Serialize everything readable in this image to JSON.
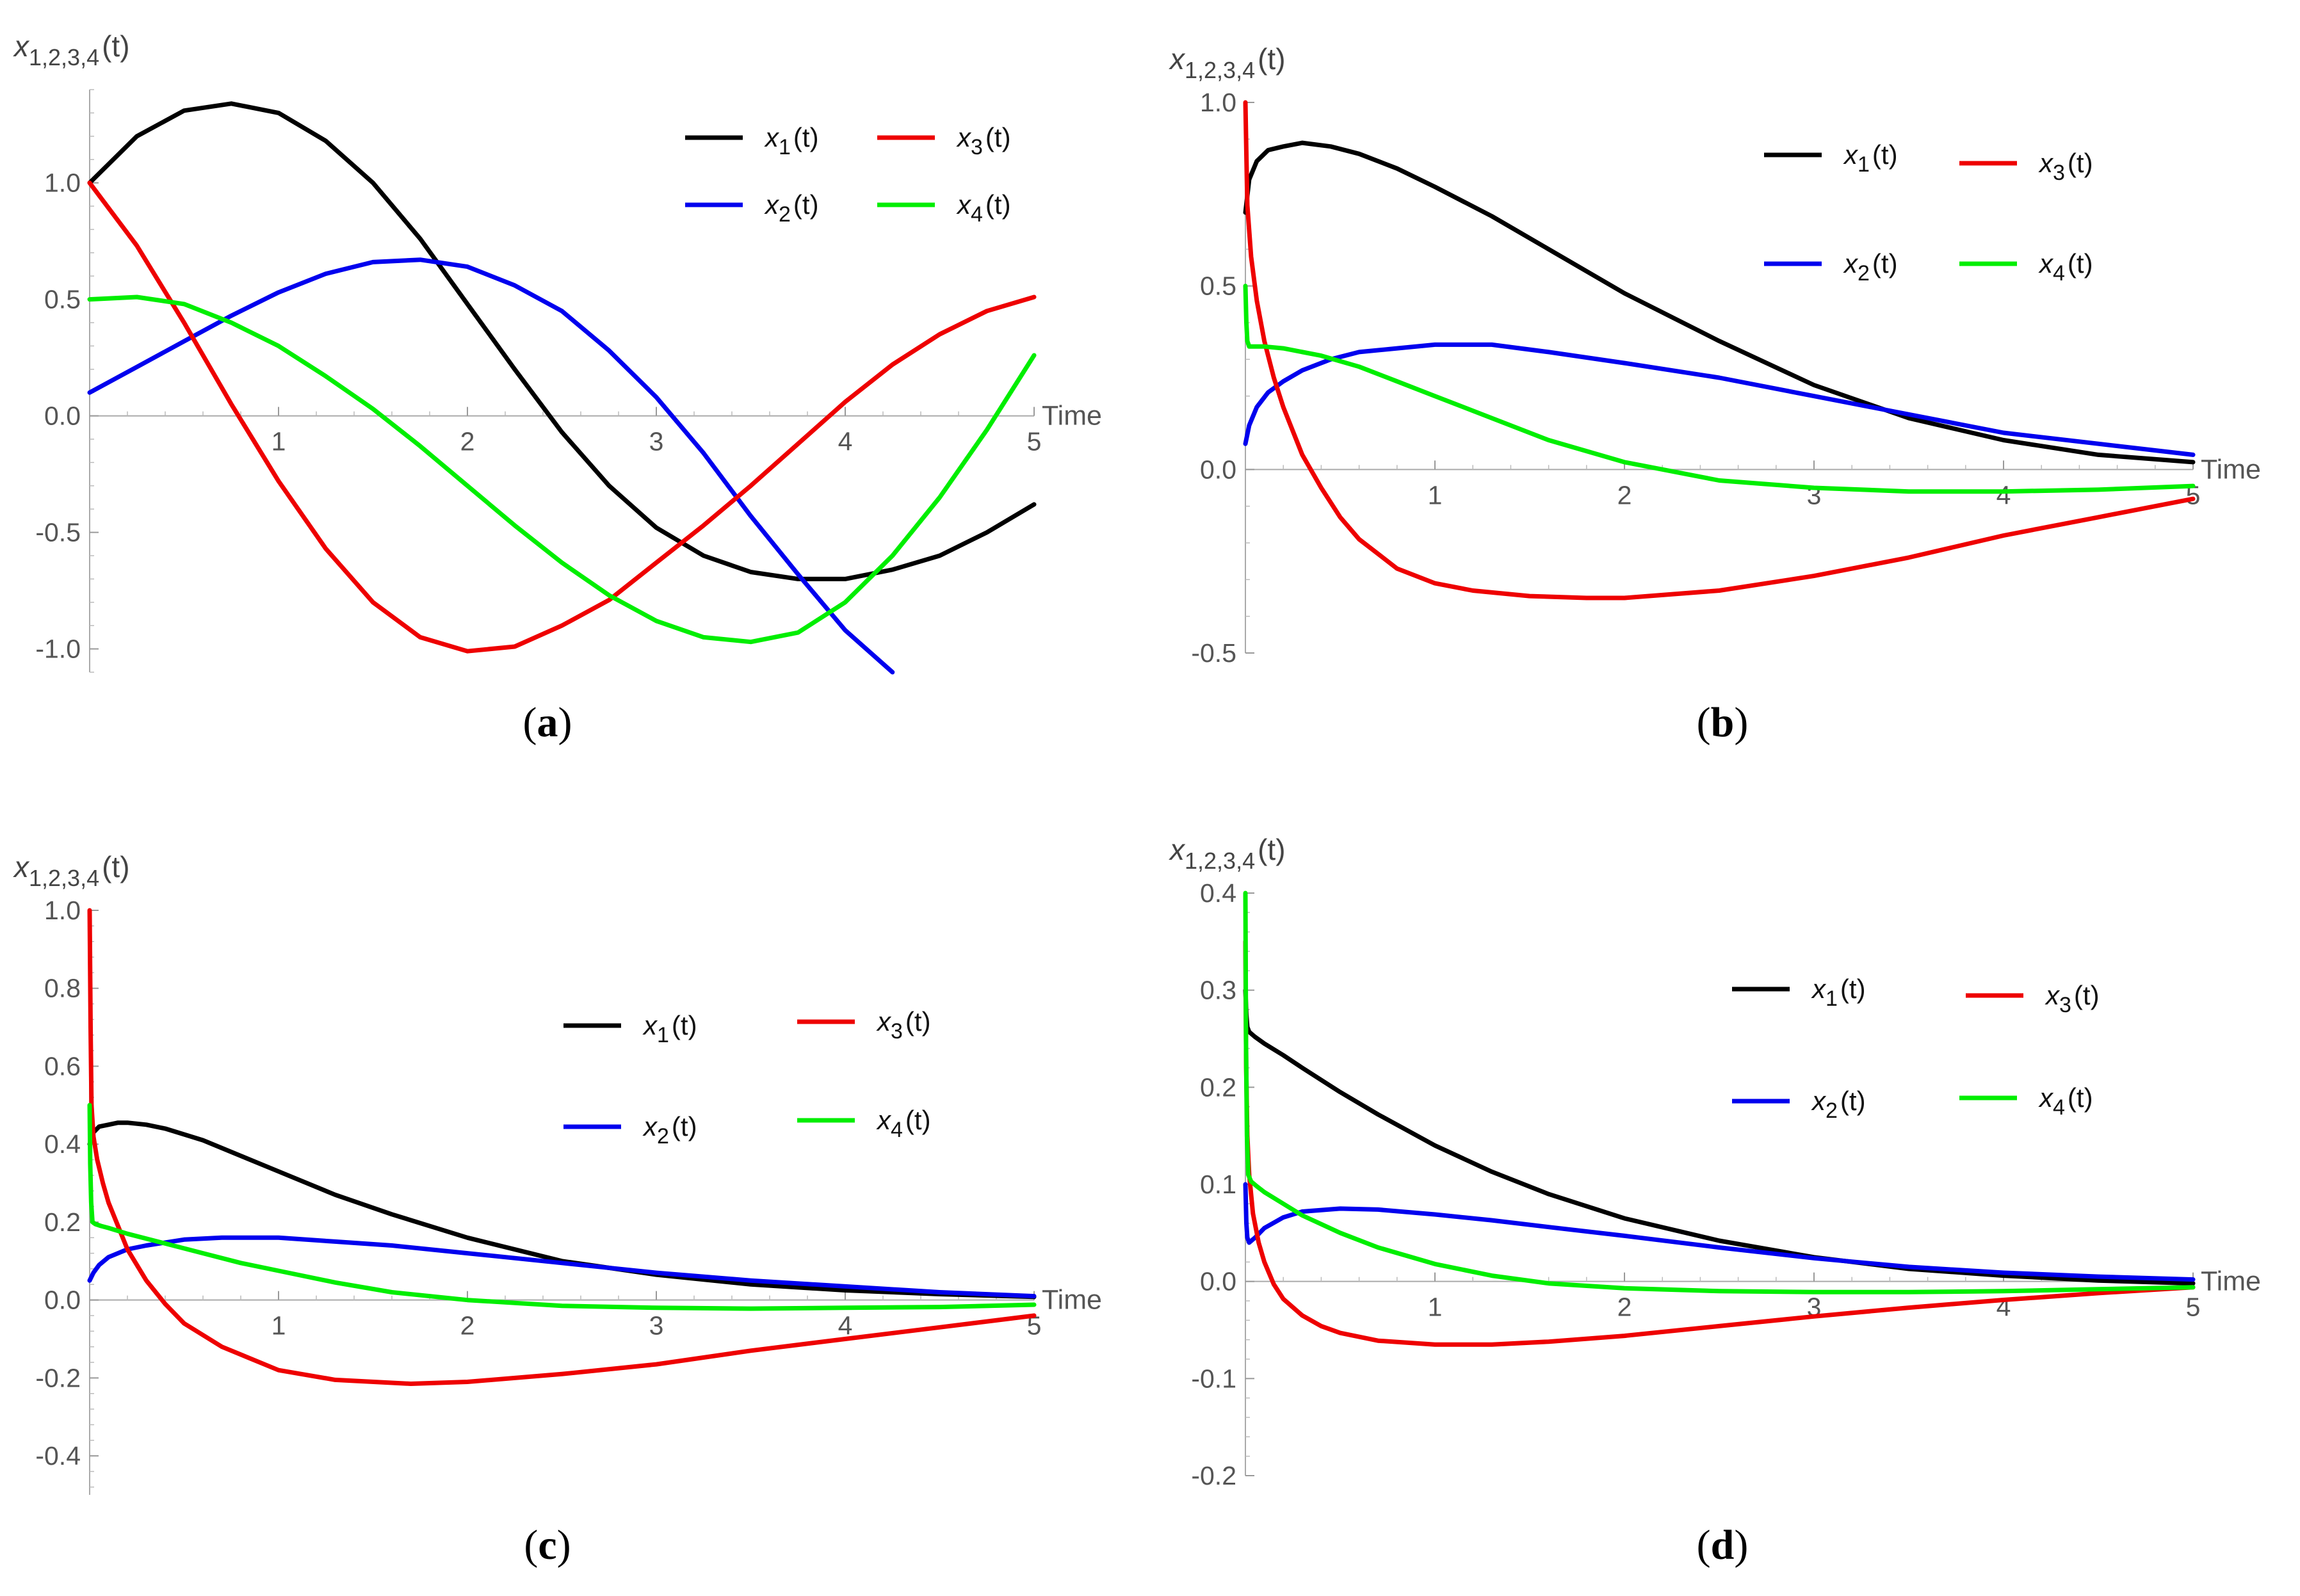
{
  "chart_data": [
    {
      "panel": "(a)",
      "caption_letter": "a",
      "type": "line",
      "xlabel": "Time",
      "ylabel_base": "x",
      "ylabel_sub": "1,2,3,4",
      "ylabel_arg": "(t)",
      "xlim": [
        0,
        5
      ],
      "ylim": [
        -1.1,
        1.4
      ],
      "xticks": [
        1,
        2,
        3,
        4,
        5
      ],
      "yticks": [
        {
          "value": 1.0,
          "label": "1.0"
        },
        {
          "value": 0.5,
          "label": "0.5"
        },
        {
          "value": 0.0,
          "label": "0.0"
        },
        {
          "value": -0.5,
          "label": "-0.5"
        },
        {
          "value": -1.0,
          "label": "-1.0"
        }
      ],
      "legend_placement": "top-right",
      "series": [
        {
          "name": "x1(t)",
          "sub": "1",
          "color": "#000000",
          "x": [
            0,
            0.25,
            0.5,
            0.75,
            1.0,
            1.25,
            1.5,
            1.75,
            2.0,
            2.25,
            2.5,
            2.75,
            3.0,
            3.25,
            3.5,
            3.75,
            4.0,
            4.25,
            4.5,
            4.75,
            5.0
          ],
          "y": [
            1.0,
            1.2,
            1.31,
            1.34,
            1.3,
            1.18,
            1.0,
            0.76,
            0.48,
            0.2,
            -0.07,
            -0.3,
            -0.48,
            -0.6,
            -0.67,
            -0.7,
            -0.7,
            -0.66,
            -0.6,
            -0.5,
            -0.38
          ]
        },
        {
          "name": "x2(t)",
          "sub": "2",
          "color": "#0000ee",
          "x": [
            0,
            0.25,
            0.5,
            0.75,
            1.0,
            1.25,
            1.5,
            1.75,
            2.0,
            2.25,
            2.5,
            2.75,
            3.0,
            3.25,
            3.5,
            3.75,
            4.0,
            4.25
          ],
          "y": [
            0.1,
            0.21,
            0.32,
            0.43,
            0.53,
            0.61,
            0.66,
            0.67,
            0.64,
            0.56,
            0.45,
            0.28,
            0.08,
            -0.16,
            -0.43,
            -0.68,
            -0.92,
            -1.1
          ]
        },
        {
          "name": "x3(t)",
          "sub": "3",
          "color": "#ee0000",
          "x": [
            0,
            0.25,
            0.5,
            0.75,
            1.0,
            1.25,
            1.5,
            1.75,
            2.0,
            2.25,
            2.5,
            2.75,
            3.0,
            3.25,
            3.5,
            3.75,
            4.0,
            4.25,
            4.5,
            4.75,
            5.0
          ],
          "y": [
            1.0,
            0.73,
            0.4,
            0.05,
            -0.28,
            -0.57,
            -0.8,
            -0.95,
            -1.01,
            -0.99,
            -0.9,
            -0.79,
            -0.63,
            -0.47,
            -0.3,
            -0.12,
            0.06,
            0.22,
            0.35,
            0.45,
            0.51
          ]
        },
        {
          "name": "x4(t)",
          "sub": "4",
          "color": "#00ee00",
          "x": [
            0,
            0.25,
            0.5,
            0.75,
            1.0,
            1.25,
            1.5,
            1.75,
            2.0,
            2.25,
            2.5,
            2.75,
            3.0,
            3.25,
            3.5,
            3.75,
            4.0,
            4.25,
            4.5,
            4.75,
            5.0
          ],
          "y": [
            0.5,
            0.51,
            0.48,
            0.4,
            0.3,
            0.17,
            0.03,
            -0.13,
            -0.3,
            -0.47,
            -0.63,
            -0.77,
            -0.88,
            -0.95,
            -0.97,
            -0.93,
            -0.8,
            -0.6,
            -0.35,
            -0.06,
            0.26
          ]
        }
      ]
    },
    {
      "panel": "(b)",
      "caption_letter": "b",
      "type": "line",
      "xlabel": "Time",
      "ylabel_base": "x",
      "ylabel_sub": "1,2,3,4",
      "ylabel_arg": "(t)",
      "xlim": [
        0,
        5
      ],
      "ylim": [
        -0.5,
        1.0
      ],
      "xticks": [
        1,
        2,
        3,
        4,
        5
      ],
      "yticks": [
        {
          "value": 1.0,
          "label": "1.0"
        },
        {
          "value": 0.5,
          "label": "0.5"
        },
        {
          "value": 0.0,
          "label": "0.0"
        },
        {
          "value": -0.5,
          "label": "-0.5"
        }
      ],
      "legend_placement": "top-right",
      "series": [
        {
          "name": "x1(t)",
          "sub": "1",
          "color": "#000000",
          "x": [
            0,
            0.02,
            0.06,
            0.12,
            0.2,
            0.3,
            0.45,
            0.6,
            0.8,
            1.0,
            1.3,
            1.6,
            2.0,
            2.5,
            3.0,
            3.5,
            4.0,
            4.5,
            5.0
          ],
          "y": [
            0.7,
            0.79,
            0.84,
            0.87,
            0.88,
            0.89,
            0.88,
            0.86,
            0.82,
            0.77,
            0.69,
            0.6,
            0.48,
            0.35,
            0.23,
            0.14,
            0.08,
            0.04,
            0.02
          ]
        },
        {
          "name": "x2(t)",
          "sub": "2",
          "color": "#0000ee",
          "x": [
            0,
            0.02,
            0.06,
            0.12,
            0.2,
            0.3,
            0.45,
            0.6,
            0.8,
            1.0,
            1.3,
            1.6,
            2.0,
            2.5,
            3.0,
            3.5,
            4.0,
            4.5,
            5.0
          ],
          "y": [
            0.07,
            0.12,
            0.17,
            0.21,
            0.24,
            0.27,
            0.3,
            0.32,
            0.33,
            0.34,
            0.34,
            0.32,
            0.29,
            0.25,
            0.2,
            0.15,
            0.1,
            0.07,
            0.04
          ]
        },
        {
          "name": "x3(t)",
          "sub": "3",
          "color": "#ee0000",
          "x": [
            0,
            0.01,
            0.03,
            0.06,
            0.1,
            0.15,
            0.2,
            0.3,
            0.4,
            0.5,
            0.6,
            0.8,
            1.0,
            1.2,
            1.5,
            1.8,
            2.0,
            2.5,
            3.0,
            3.5,
            4.0,
            4.5,
            5.0
          ],
          "y": [
            1.0,
            0.72,
            0.58,
            0.46,
            0.35,
            0.25,
            0.17,
            0.04,
            -0.05,
            -0.13,
            -0.19,
            -0.27,
            -0.31,
            -0.33,
            -0.345,
            -0.35,
            -0.35,
            -0.33,
            -0.29,
            -0.24,
            -0.18,
            -0.13,
            -0.08
          ]
        },
        {
          "name": "x4(t)",
          "sub": "4",
          "color": "#00ee00",
          "x": [
            0,
            0.005,
            0.01,
            0.02,
            0.05,
            0.1,
            0.2,
            0.4,
            0.6,
            0.8,
            1.0,
            1.3,
            1.6,
            2.0,
            2.5,
            3.0,
            3.5,
            4.0,
            4.5,
            5.0
          ],
          "y": [
            0.5,
            0.4,
            0.35,
            0.335,
            0.335,
            0.335,
            0.33,
            0.31,
            0.28,
            0.24,
            0.2,
            0.14,
            0.08,
            0.02,
            -0.03,
            -0.05,
            -0.06,
            -0.06,
            -0.055,
            -0.045
          ]
        }
      ]
    },
    {
      "panel": "(c)",
      "caption_letter": "c",
      "type": "line",
      "xlabel": "Time",
      "ylabel_base": "x",
      "ylabel_sub": "1,2,3,4",
      "ylabel_arg": "(t)",
      "xlim": [
        0,
        5
      ],
      "ylim": [
        -0.5,
        1.0
      ],
      "xticks": [
        1,
        2,
        3,
        4,
        5
      ],
      "yticks": [
        {
          "value": 1.0,
          "label": "1.0"
        },
        {
          "value": 0.8,
          "label": "0.8"
        },
        {
          "value": 0.6,
          "label": "0.6"
        },
        {
          "value": 0.4,
          "label": "0.4"
        },
        {
          "value": 0.2,
          "label": "0.2"
        },
        {
          "value": 0.0,
          "label": "0.0"
        },
        {
          "value": -0.2,
          "label": "-0.2"
        },
        {
          "value": -0.4,
          "label": "-0.4"
        }
      ],
      "legend_placement": "center-right",
      "series": [
        {
          "name": "x1(t)",
          "sub": "1",
          "color": "#000000",
          "x": [
            0,
            0.02,
            0.05,
            0.1,
            0.15,
            0.2,
            0.3,
            0.4,
            0.6,
            0.8,
            1.0,
            1.3,
            1.6,
            2.0,
            2.5,
            3.0,
            3.5,
            4.0,
            4.5,
            5.0
          ],
          "y": [
            0.4,
            0.43,
            0.445,
            0.45,
            0.455,
            0.455,
            0.45,
            0.44,
            0.41,
            0.37,
            0.33,
            0.27,
            0.22,
            0.16,
            0.1,
            0.065,
            0.04,
            0.025,
            0.015,
            0.008
          ]
        },
        {
          "name": "x2(t)",
          "sub": "2",
          "color": "#0000ee",
          "x": [
            0,
            0.02,
            0.05,
            0.1,
            0.2,
            0.3,
            0.5,
            0.7,
            1.0,
            1.3,
            1.6,
            2.0,
            2.5,
            3.0,
            3.5,
            4.0,
            4.5,
            5.0
          ],
          "y": [
            0.05,
            0.07,
            0.09,
            0.11,
            0.13,
            0.14,
            0.155,
            0.16,
            0.16,
            0.15,
            0.14,
            0.12,
            0.095,
            0.07,
            0.05,
            0.035,
            0.02,
            0.01
          ]
        },
        {
          "name": "x3(t)",
          "sub": "3",
          "color": "#ee0000",
          "x": [
            0,
            0.005,
            0.01,
            0.02,
            0.04,
            0.07,
            0.1,
            0.15,
            0.2,
            0.3,
            0.4,
            0.5,
            0.7,
            1.0,
            1.3,
            1.7,
            2.0,
            2.5,
            3.0,
            3.5,
            4.0,
            4.5,
            5.0
          ],
          "y": [
            1.0,
            0.7,
            0.5,
            0.42,
            0.36,
            0.3,
            0.25,
            0.19,
            0.13,
            0.05,
            -0.01,
            -0.06,
            -0.12,
            -0.18,
            -0.205,
            -0.215,
            -0.21,
            -0.19,
            -0.165,
            -0.13,
            -0.1,
            -0.07,
            -0.04
          ]
        },
        {
          "name": "x4(t)",
          "sub": "4",
          "color": "#00ee00",
          "x": [
            0,
            0.003,
            0.008,
            0.015,
            0.03,
            0.06,
            0.1,
            0.2,
            0.4,
            0.6,
            0.8,
            1.0,
            1.3,
            1.6,
            2.0,
            2.5,
            3.0,
            3.5,
            4.0,
            4.5,
            5.0
          ],
          "y": [
            0.5,
            0.35,
            0.25,
            0.2,
            0.195,
            0.19,
            0.185,
            0.17,
            0.145,
            0.12,
            0.095,
            0.075,
            0.045,
            0.02,
            0.0,
            -0.015,
            -0.02,
            -0.022,
            -0.02,
            -0.018,
            -0.012
          ]
        }
      ]
    },
    {
      "panel": "(d)",
      "caption_letter": "d",
      "type": "line",
      "xlabel": "Time",
      "ylabel_base": "x",
      "ylabel_sub": "1,2,3,4",
      "ylabel_arg": "(t)",
      "xlim": [
        0,
        5
      ],
      "ylim": [
        -0.2,
        0.4
      ],
      "xticks": [
        1,
        2,
        3,
        4,
        5
      ],
      "yticks": [
        {
          "value": 0.4,
          "label": "0.4"
        },
        {
          "value": 0.3,
          "label": "0.3"
        },
        {
          "value": 0.2,
          "label": "0.2"
        },
        {
          "value": 0.1,
          "label": "0.1"
        },
        {
          "value": 0.0,
          "label": "0.0"
        },
        {
          "value": -0.1,
          "label": "-0.1"
        },
        {
          "value": -0.2,
          "label": "-0.2"
        }
      ],
      "legend_placement": "top-right",
      "series": [
        {
          "name": "x1(t)",
          "sub": "1",
          "color": "#000000",
          "x": [
            0,
            0.005,
            0.01,
            0.02,
            0.05,
            0.1,
            0.2,
            0.3,
            0.5,
            0.7,
            1.0,
            1.3,
            1.6,
            2.0,
            2.5,
            3.0,
            3.5,
            4.0,
            4.5,
            5.0
          ],
          "y": [
            0.3,
            0.275,
            0.262,
            0.257,
            0.252,
            0.245,
            0.233,
            0.22,
            0.195,
            0.172,
            0.14,
            0.113,
            0.09,
            0.065,
            0.042,
            0.025,
            0.013,
            0.006,
            0.001,
            -0.002
          ]
        },
        {
          "name": "x2(t)",
          "sub": "2",
          "color": "#0000ee",
          "x": [
            0,
            0.005,
            0.01,
            0.02,
            0.05,
            0.1,
            0.2,
            0.3,
            0.5,
            0.7,
            1.0,
            1.3,
            1.6,
            2.0,
            2.5,
            3.0,
            3.5,
            4.0,
            4.5,
            5.0
          ],
          "y": [
            0.1,
            0.06,
            0.045,
            0.04,
            0.045,
            0.055,
            0.066,
            0.072,
            0.075,
            0.074,
            0.069,
            0.063,
            0.056,
            0.047,
            0.035,
            0.024,
            0.015,
            0.009,
            0.005,
            0.002
          ]
        },
        {
          "name": "x3(t)",
          "sub": "3",
          "color": "#ee0000",
          "x": [
            0,
            0.004,
            0.01,
            0.02,
            0.04,
            0.07,
            0.1,
            0.15,
            0.2,
            0.3,
            0.4,
            0.5,
            0.7,
            1.0,
            1.3,
            1.6,
            2.0,
            2.5,
            3.0,
            3.5,
            4.0,
            4.5,
            5.0
          ],
          "y": [
            0.35,
            0.22,
            0.15,
            0.11,
            0.07,
            0.04,
            0.02,
            -0.003,
            -0.018,
            -0.035,
            -0.046,
            -0.053,
            -0.061,
            -0.065,
            -0.065,
            -0.062,
            -0.056,
            -0.046,
            -0.036,
            -0.027,
            -0.019,
            -0.012,
            -0.006
          ]
        },
        {
          "name": "x4(t)",
          "sub": "4",
          "color": "#00ee00",
          "x": [
            0,
            0.003,
            0.008,
            0.015,
            0.03,
            0.06,
            0.1,
            0.2,
            0.3,
            0.5,
            0.7,
            1.0,
            1.3,
            1.6,
            2.0,
            2.5,
            3.0,
            3.5,
            4.0,
            4.5,
            5.0
          ],
          "y": [
            0.4,
            0.25,
            0.15,
            0.11,
            0.103,
            0.098,
            0.092,
            0.08,
            0.068,
            0.05,
            0.035,
            0.018,
            0.006,
            -0.002,
            -0.007,
            -0.01,
            -0.011,
            -0.011,
            -0.01,
            -0.008,
            -0.006
          ]
        }
      ]
    }
  ]
}
